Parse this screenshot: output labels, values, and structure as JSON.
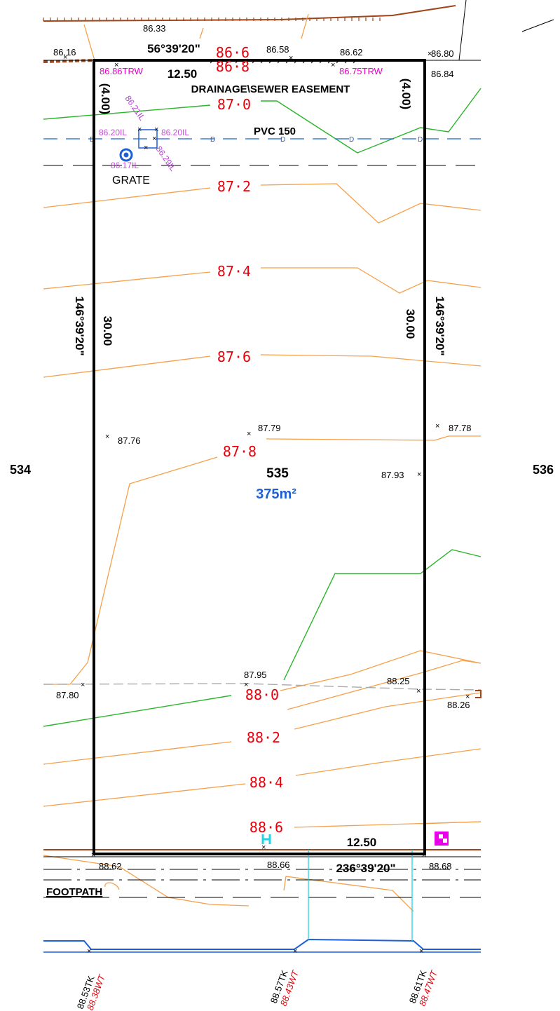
{
  "title": "DRAINAGE\\SEWER EASEMENT",
  "pipe": "PVC 150",
  "lots": {
    "left": "534",
    "center": "535",
    "right": "536"
  },
  "area": "375m²",
  "bearings": {
    "top": "56°39'20\"",
    "bottom": "236°39'20\"",
    "left": "146°39'20\"",
    "right": "146°39'20\""
  },
  "dimensions": {
    "top": "12.50",
    "bottom": "12.50",
    "left": "30.00",
    "right": "30.00",
    "easement_left": "(4.00)",
    "easement_right": "(4.00)"
  },
  "contours": [
    "86·6",
    "86·8",
    "87·0",
    "87·2",
    "87·4",
    "87·6",
    "87·8",
    "88·0",
    "88·2",
    "88·4",
    "88·6"
  ],
  "spot_levels": {
    "s1": "86.33",
    "s2": "86.16",
    "s3": "86.58",
    "s4": "86.62",
    "s5": "86.80",
    "s6": "86.84",
    "s7": "87.76",
    "s8": "87.79",
    "s9": "87.78",
    "s10": "87.93",
    "s11": "87.95",
    "s12": "88.25",
    "s13": "87.80",
    "s14": "88.26",
    "s15": "88.62",
    "s16": "88.66",
    "s17": "88.68"
  },
  "trw": {
    "left": "86.86TRW",
    "right": "86.75TRW"
  },
  "pit": {
    "il_left": "86.20IL",
    "il_right": "86.20IL",
    "il_top": "86.21IL",
    "il_bl": "86.17IL",
    "il_br": "86.29IL",
    "grate": "GRATE"
  },
  "footpath": "FOOTPATH",
  "kerb": [
    {
      "tk": "88.53TK",
      "wt": "88.38WT"
    },
    {
      "tk": "88.57TK",
      "wt": "88.43WT"
    },
    {
      "tk": "88.61TK",
      "wt": "88.47WT"
    }
  ],
  "colors": {
    "boundary": "#000000",
    "contour_minor": "#f5a04a",
    "contour_major": "#2bb52b",
    "contour_label": "#e8000b",
    "sewer": "#1f5fd6",
    "area": "#1f5fd6",
    "batter": "#a0451a"
  }
}
